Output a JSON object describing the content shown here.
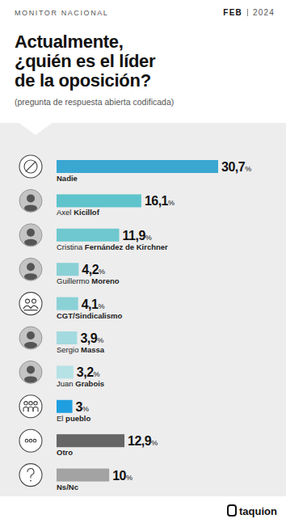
{
  "chart_data": {
    "type": "bar",
    "orientation": "horizontal",
    "title": "Actualmente, ¿quién es el líder de la oposición?",
    "subtitle": "(pregunta de respuesta abierta codificada)",
    "annotations": [
      "MONITOR NACIONAL",
      "FEB",
      "2024",
      "taquion"
    ],
    "categories": [
      "Nadie",
      "Axel Kicillof",
      "Cristina Fernández de Kirchner",
      "Guillermo Moreno",
      "CGT/Sindicalismo",
      "Sergio Massa",
      "Juan Grabois",
      "El pueblo",
      "Otro",
      "Ns/Nc"
    ],
    "values": [
      30.7,
      16.1,
      11.9,
      4.2,
      4.1,
      3.9,
      3.2,
      3,
      12.9,
      10
    ],
    "value_labels": [
      "30,7%",
      "16,1%",
      "11,9%",
      "4,2%",
      "4,1%",
      "3,9%",
      "3,2%",
      "3%",
      "12,9%",
      "10%"
    ],
    "colors": [
      "#3aa7d2",
      "#5ec3cb",
      "#6fc8cf",
      "#8ad1d6",
      "#8ad1d6",
      "#a3dadf",
      "#b6e2e5",
      "#1f9fe0",
      "#666666",
      "#a3a3a3"
    ],
    "xlim": [
      0,
      30.7
    ],
    "data_labels": true,
    "tick_labels": false
  }
}
